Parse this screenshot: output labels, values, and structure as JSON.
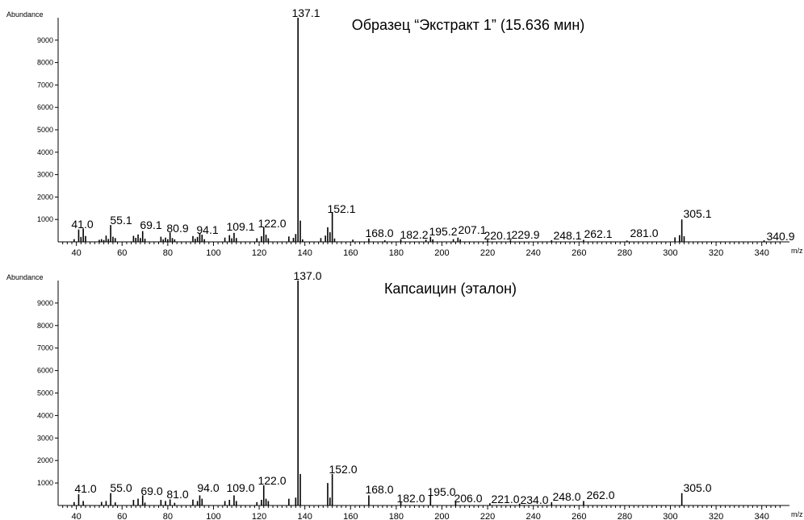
{
  "chart_data": [
    {
      "type": "bar",
      "title": "Образец “Экстракт 1” (15.636 мин)",
      "ylabel": "Abundance",
      "xlabel": "m/z",
      "xlim": [
        32,
        350
      ],
      "ylim": [
        0,
        10000
      ],
      "x_ticks": [
        "40",
        "60",
        "80",
        "100",
        "120",
        "140",
        "160",
        "180",
        "200",
        "220",
        "240",
        "260",
        "280",
        "300",
        "320",
        "340"
      ],
      "y_ticks": [
        "1000",
        "2000",
        "3000",
        "4000",
        "5000",
        "6000",
        "7000",
        "8000",
        "9000"
      ],
      "peak_labels": [
        "41.0",
        "55.1",
        "69.1",
        "80.9",
        "94.1",
        "109.1",
        "122.0",
        "137.1",
        "152.1",
        "168.0",
        "182.2",
        "195.2",
        "207.1",
        "220.1",
        "229.9",
        "248.1",
        "262.1",
        "281.0",
        "305.1",
        "340.9"
      ],
      "peaks": [
        {
          "x": 39,
          "y": 120
        },
        {
          "x": 41,
          "y": 550
        },
        {
          "x": 42,
          "y": 220
        },
        {
          "x": 43,
          "y": 600
        },
        {
          "x": 44,
          "y": 260
        },
        {
          "x": 50,
          "y": 90
        },
        {
          "x": 51,
          "y": 120
        },
        {
          "x": 52,
          "y": 80
        },
        {
          "x": 53,
          "y": 280
        },
        {
          "x": 54,
          "y": 130
        },
        {
          "x": 55,
          "y": 750
        },
        {
          "x": 56,
          "y": 230
        },
        {
          "x": 57,
          "y": 170
        },
        {
          "x": 65,
          "y": 270
        },
        {
          "x": 66,
          "y": 180
        },
        {
          "x": 67,
          "y": 330
        },
        {
          "x": 68,
          "y": 170
        },
        {
          "x": 69,
          "y": 480
        },
        {
          "x": 70,
          "y": 140
        },
        {
          "x": 77,
          "y": 230
        },
        {
          "x": 78,
          "y": 110
        },
        {
          "x": 79,
          "y": 190
        },
        {
          "x": 80,
          "y": 120
        },
        {
          "x": 81,
          "y": 420
        },
        {
          "x": 82,
          "y": 170
        },
        {
          "x": 83,
          "y": 110
        },
        {
          "x": 91,
          "y": 260
        },
        {
          "x": 92,
          "y": 140
        },
        {
          "x": 93,
          "y": 220
        },
        {
          "x": 94,
          "y": 370
        },
        {
          "x": 95,
          "y": 320
        },
        {
          "x": 96,
          "y": 120
        },
        {
          "x": 105,
          "y": 190
        },
        {
          "x": 107,
          "y": 300
        },
        {
          "x": 108,
          "y": 160
        },
        {
          "x": 109,
          "y": 400
        },
        {
          "x": 110,
          "y": 170
        },
        {
          "x": 119,
          "y": 160
        },
        {
          "x": 121,
          "y": 250
        },
        {
          "x": 122,
          "y": 650
        },
        {
          "x": 123,
          "y": 320
        },
        {
          "x": 124,
          "y": 160
        },
        {
          "x": 133,
          "y": 240
        },
        {
          "x": 135,
          "y": 180
        },
        {
          "x": 136,
          "y": 350
        },
        {
          "x": 137,
          "y": 10000
        },
        {
          "x": 138,
          "y": 950
        },
        {
          "x": 139,
          "y": 110
        },
        {
          "x": 147,
          "y": 170
        },
        {
          "x": 149,
          "y": 280
        },
        {
          "x": 150,
          "y": 650
        },
        {
          "x": 151,
          "y": 430
        },
        {
          "x": 152,
          "y": 1300
        },
        {
          "x": 153,
          "y": 150
        },
        {
          "x": 161,
          "y": 100
        },
        {
          "x": 168,
          "y": 150
        },
        {
          "x": 175,
          "y": 70
        },
        {
          "x": 182,
          "y": 120
        },
        {
          "x": 193,
          "y": 100
        },
        {
          "x": 195,
          "y": 230
        },
        {
          "x": 196,
          "y": 110
        },
        {
          "x": 205,
          "y": 120
        },
        {
          "x": 207,
          "y": 190
        },
        {
          "x": 208,
          "y": 110
        },
        {
          "x": 220,
          "y": 90
        },
        {
          "x": 230,
          "y": 80
        },
        {
          "x": 248,
          "y": 70
        },
        {
          "x": 262,
          "y": 90
        },
        {
          "x": 281,
          "y": 60
        },
        {
          "x": 302,
          "y": 200
        },
        {
          "x": 304,
          "y": 300
        },
        {
          "x": 305,
          "y": 1000
        },
        {
          "x": 306,
          "y": 250
        },
        {
          "x": 341,
          "y": 70
        }
      ]
    },
    {
      "type": "bar",
      "title": "Капсаицин (эталон)",
      "ylabel": "Abundance",
      "xlabel": "m/z",
      "xlim": [
        32,
        350
      ],
      "ylim": [
        0,
        10000
      ],
      "x_ticks": [
        "40",
        "60",
        "80",
        "100",
        "120",
        "140",
        "160",
        "180",
        "200",
        "220",
        "240",
        "260",
        "280",
        "300",
        "320",
        "340"
      ],
      "y_ticks": [
        "1000",
        "2000",
        "3000",
        "4000",
        "5000",
        "6000",
        "7000",
        "8000",
        "9000"
      ],
      "peak_labels": [
        "41.0",
        "55.0",
        "69.0",
        "81.0",
        "94.0",
        "109.0",
        "122.0",
        "137.0",
        "152.0",
        "168.0",
        "182.0",
        "195.0",
        "206.0",
        "221.0",
        "234.0",
        "248.0",
        "262.0",
        "305.0"
      ],
      "peaks": [
        {
          "x": 39,
          "y": 150
        },
        {
          "x": 41,
          "y": 500
        },
        {
          "x": 43,
          "y": 200
        },
        {
          "x": 51,
          "y": 160
        },
        {
          "x": 53,
          "y": 200
        },
        {
          "x": 55,
          "y": 550
        },
        {
          "x": 57,
          "y": 140
        },
        {
          "x": 65,
          "y": 250
        },
        {
          "x": 67,
          "y": 300
        },
        {
          "x": 69,
          "y": 450
        },
        {
          "x": 70,
          "y": 130
        },
        {
          "x": 77,
          "y": 250
        },
        {
          "x": 79,
          "y": 200
        },
        {
          "x": 81,
          "y": 270
        },
        {
          "x": 83,
          "y": 120
        },
        {
          "x": 91,
          "y": 260
        },
        {
          "x": 93,
          "y": 200
        },
        {
          "x": 94,
          "y": 450
        },
        {
          "x": 95,
          "y": 300
        },
        {
          "x": 105,
          "y": 200
        },
        {
          "x": 107,
          "y": 250
        },
        {
          "x": 109,
          "y": 450
        },
        {
          "x": 110,
          "y": 200
        },
        {
          "x": 119,
          "y": 150
        },
        {
          "x": 121,
          "y": 250
        },
        {
          "x": 122,
          "y": 900
        },
        {
          "x": 123,
          "y": 300
        },
        {
          "x": 124,
          "y": 200
        },
        {
          "x": 133,
          "y": 300
        },
        {
          "x": 136,
          "y": 350
        },
        {
          "x": 137,
          "y": 10000
        },
        {
          "x": 138,
          "y": 1400
        },
        {
          "x": 150,
          "y": 1000
        },
        {
          "x": 151,
          "y": 350
        },
        {
          "x": 152,
          "y": 1400
        },
        {
          "x": 168,
          "y": 450
        },
        {
          "x": 182,
          "y": 150
        },
        {
          "x": 195,
          "y": 450
        },
        {
          "x": 206,
          "y": 150
        },
        {
          "x": 221,
          "y": 100
        },
        {
          "x": 234,
          "y": 80
        },
        {
          "x": 248,
          "y": 150
        },
        {
          "x": 262,
          "y": 200
        },
        {
          "x": 305,
          "y": 550
        }
      ]
    }
  ]
}
